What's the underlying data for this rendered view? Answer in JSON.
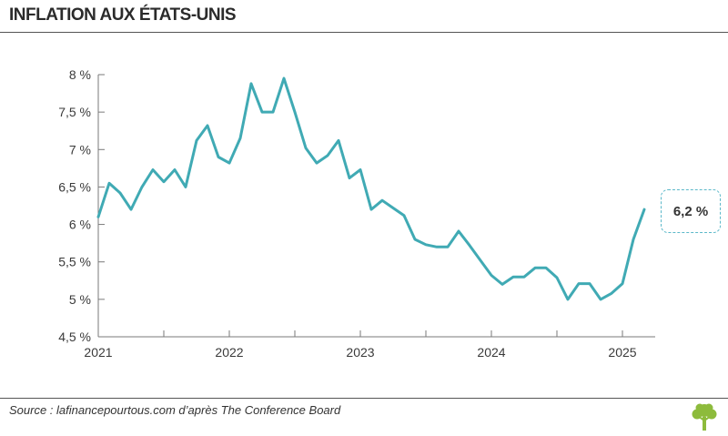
{
  "header": {
    "title": "INFLATION AUX ÉTATS-UNIS"
  },
  "footer": {
    "source": "Source : lafinancepourtous.com d’après The Conference Board"
  },
  "callout": {
    "label": "6,2 %"
  },
  "colors": {
    "line": "#40aab4",
    "axis": "#7a7a7a",
    "logo": "#8dbb3c",
    "callout_border": "#5bb8c9"
  },
  "chart_data": {
    "type": "line",
    "title": "INFLATION AUX ÉTATS-UNIS",
    "xlabel": "",
    "ylabel": "",
    "ylim": [
      4.5,
      8
    ],
    "xlim": [
      "2021-01",
      "2025-04"
    ],
    "yticks": [
      4.5,
      5,
      5.5,
      6,
      6.5,
      7,
      7.5,
      8
    ],
    "ytick_labels": [
      "4,5 %",
      "5 %",
      "5,5 %",
      "6 %",
      "6,5 %",
      "7 %",
      "7,5 %",
      "8 %"
    ],
    "xtick_labels": [
      "2021",
      "2022",
      "2023",
      "2024",
      "2025"
    ],
    "grid": false,
    "series": [
      {
        "x": [
          "2021-01",
          "2021-02",
          "2021-03",
          "2021-04",
          "2021-05",
          "2021-06",
          "2021-07",
          "2021-08",
          "2021-09",
          "2021-10",
          "2021-11",
          "2021-12",
          "2022-01",
          "2022-02",
          "2022-03",
          "2022-04",
          "2022-05",
          "2022-06",
          "2022-07",
          "2022-08",
          "2022-09",
          "2022-10",
          "2022-11",
          "2022-12",
          "2023-01",
          "2023-02",
          "2023-03",
          "2023-04",
          "2023-05",
          "2023-06",
          "2023-07",
          "2023-08",
          "2023-09",
          "2023-10",
          "2023-11",
          "2023-12",
          "2024-01",
          "2024-02",
          "2024-03",
          "2024-04",
          "2024-05",
          "2024-06",
          "2024-07",
          "2024-08",
          "2024-09",
          "2024-10",
          "2024-11",
          "2024-12",
          "2025-01",
          "2025-02",
          "2025-03"
        ],
        "values": [
          6.1,
          6.55,
          6.42,
          6.2,
          6.5,
          6.73,
          6.57,
          6.73,
          6.5,
          7.12,
          7.32,
          6.9,
          6.82,
          7.15,
          7.88,
          7.5,
          7.5,
          7.95,
          7.5,
          7.02,
          6.82,
          6.92,
          7.12,
          6.62,
          6.73,
          6.2,
          6.32,
          6.22,
          6.12,
          5.8,
          5.73,
          5.7,
          5.7,
          5.91,
          5.72,
          5.52,
          5.32,
          5.2,
          5.3,
          5.3,
          5.42,
          5.42,
          5.29,
          5.0,
          5.21,
          5.21,
          5.0,
          5.08,
          5.21,
          5.8,
          6.2
        ]
      }
    ],
    "annotations": [
      {
        "text": "6,2 %",
        "x": "2025-03",
        "y": 6.2
      }
    ]
  }
}
